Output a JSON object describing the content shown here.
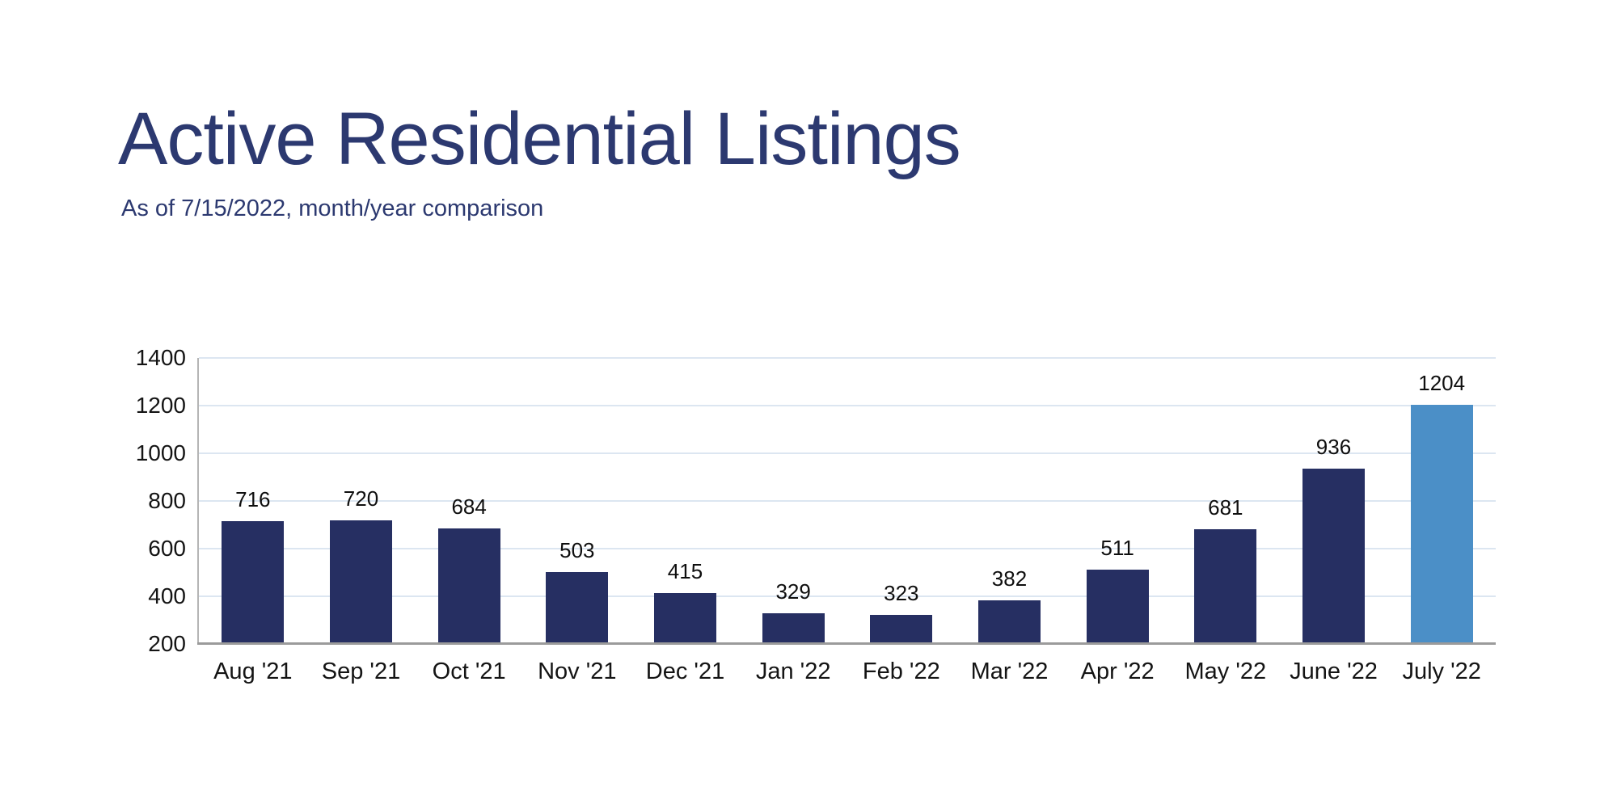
{
  "header": {
    "title": "Active Residential Listings",
    "subtitle": "As of 7/15/2022, month/year comparison",
    "title_color": "#2c3970"
  },
  "chart_data": {
    "type": "bar",
    "title": "Active Residential Listings",
    "subtitle": "As of 7/15/2022, month/year comparison",
    "categories": [
      "Aug '21",
      "Sep '21",
      "Oct '21",
      "Nov '21",
      "Dec '21",
      "Jan '22",
      "Feb '22",
      "Mar '22",
      "Apr '22",
      "May '22",
      "June '22",
      "July '22"
    ],
    "values": [
      716,
      720,
      684,
      503,
      415,
      329,
      323,
      382,
      511,
      681,
      936,
      1204
    ],
    "data_labels": true,
    "highlight_index": 11,
    "ylim": [
      200,
      1400
    ],
    "ystep": 200,
    "grid": true,
    "legend": false,
    "xlabel": "",
    "ylabel": "",
    "colors": {
      "bar": "#262f62",
      "highlight_bar": "#4b8fc7",
      "gridline": "#dce6f1",
      "axis_left": "#b5b5b5",
      "axis_bottom": "#9b9b9b",
      "tick_label": "#141414",
      "data_label": "#0f0f0f"
    }
  }
}
